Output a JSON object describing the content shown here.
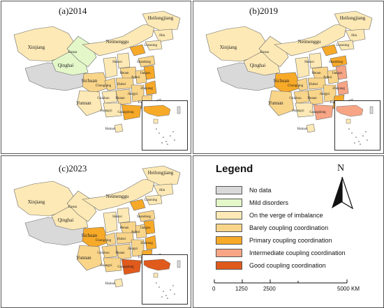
{
  "panels": [
    {
      "id": "2014",
      "title": "(a)2014"
    },
    {
      "id": "2019",
      "title": "(b)2019"
    },
    {
      "id": "2023",
      "title": "(c)2023"
    }
  ],
  "province_labels": {
    "xinjiang": "Xinjiang",
    "gansu": "Gansu",
    "qinghai": "Qinghai",
    "neimenggu": "Neimenggu",
    "heilongjiang": "Heilongjiang",
    "jilin": "Jilin",
    "liaoning": "Liaoning",
    "shandong": "Shandong",
    "shanxi": "Shanxi",
    "henan": "Henan",
    "hubei": "Hubei",
    "hunan": "Hunan",
    "sichuan": "Sichuan",
    "chongqing": "Chongqing",
    "guizhou": "Guizhou",
    "yunnan": "Yunnan",
    "guangxi": "Guangxi",
    "guangdong": "Guangdong",
    "fujian": "Fujian",
    "jiangxi": "Jiangxi",
    "zhejiang": "Zhejiang",
    "jiangsu": "Jiangsu",
    "anhui": "Anhui",
    "hainan": "Hainan"
  },
  "legend": {
    "title": "Legend",
    "items": [
      {
        "label": "No data",
        "color": "#d9d9d9"
      },
      {
        "label": "Mild disorders",
        "color": "#e3f7c8"
      },
      {
        "label": "On the verge of imbalance",
        "color": "#fde9b5"
      },
      {
        "label": "Barely coupling coordination",
        "color": "#f9d58a"
      },
      {
        "label": "Primary coupling coordination",
        "color": "#f7a928"
      },
      {
        "label": "Intermediate coupling coordination",
        "color": "#f7a585"
      },
      {
        "label": "Good coupling coordination",
        "color": "#e05a1c"
      }
    ]
  },
  "north_label": "N",
  "scale": {
    "ticks": [
      "0",
      "1250",
      "2500",
      "5000 KM"
    ]
  },
  "colors": {
    "nodata": "#d9d9d9",
    "mild": "#e3f7c8",
    "verge": "#fde9b5",
    "barely": "#f9d58a",
    "primary": "#f7a928",
    "intermediate": "#f7a585",
    "good": "#e05a1c",
    "border": "#6b6b6b"
  }
}
